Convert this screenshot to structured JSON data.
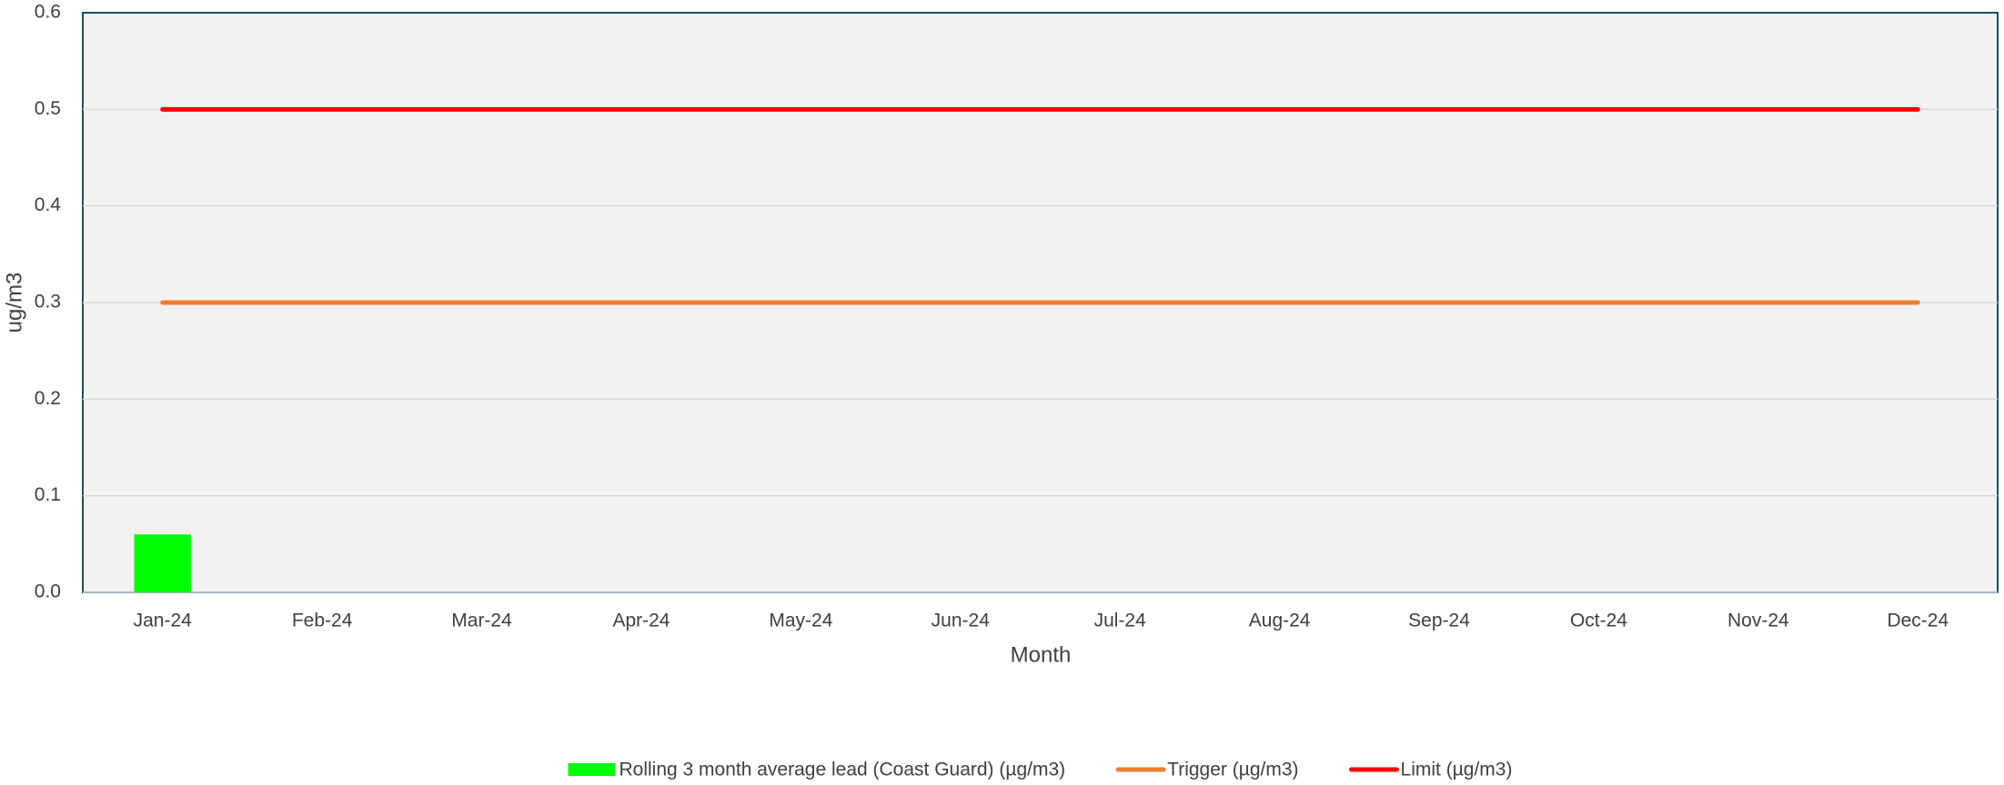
{
  "chart_data": {
    "type": "bar-line",
    "y_label": "ug/m3",
    "x_label": "Month",
    "categories": [
      "Jan-24",
      "Feb-24",
      "Mar-24",
      "Apr-24",
      "May-24",
      "Jun-24",
      "Jul-24",
      "Aug-24",
      "Sep-24",
      "Oct-24",
      "Nov-24",
      "Dec-24"
    ],
    "series": [
      {
        "name": "Rolling 3 month average lead (Coast Guard) (µg/m3)",
        "type": "bar",
        "color": "#00ff00",
        "values": [
          0.06,
          null,
          null,
          null,
          null,
          null,
          null,
          null,
          null,
          null,
          null,
          null
        ]
      },
      {
        "name": "Trigger (µg/m3)",
        "type": "line",
        "color": "#ed7d31",
        "values": [
          0.3,
          0.3,
          0.3,
          0.3,
          0.3,
          0.3,
          0.3,
          0.3,
          0.3,
          0.3,
          0.3,
          0.3
        ]
      },
      {
        "name": "Limit (µg/m3)",
        "type": "line",
        "color": "#ff0000",
        "values": [
          0.5,
          0.5,
          0.5,
          0.5,
          0.5,
          0.5,
          0.5,
          0.5,
          0.5,
          0.5,
          0.5,
          0.5
        ]
      }
    ],
    "ylim": [
      0,
      0.6
    ],
    "yticks": [
      {
        "value": 0,
        "label": "0.0"
      },
      0.1,
      0.2,
      0.3,
      0.4,
      0.5,
      0.6
    ],
    "grid": true,
    "legend": "bottom"
  }
}
